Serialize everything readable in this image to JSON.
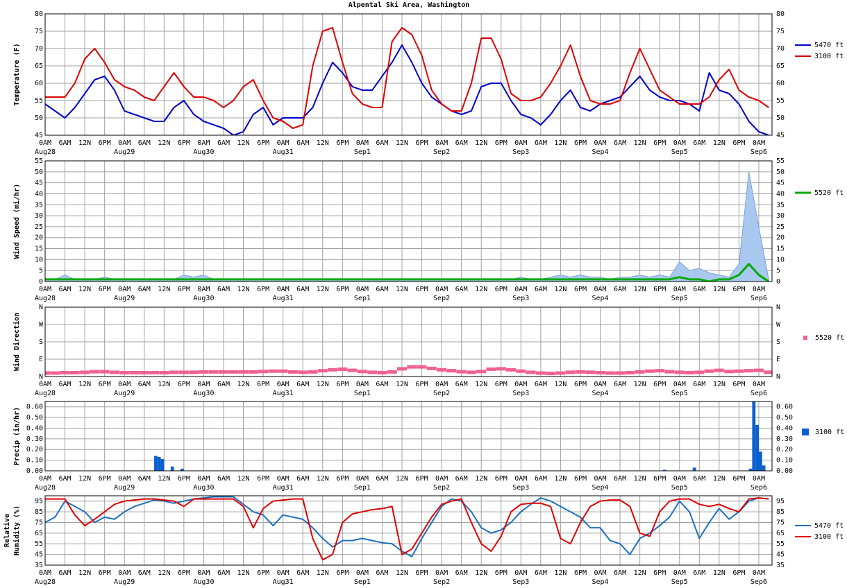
{
  "chart_data": {
    "title": "Alpental Ski Area, Washington",
    "xlim": [
      0,
      220
    ],
    "xticks": [
      {
        "value": 0,
        "label": "0AM"
      },
      {
        "value": 6,
        "label": "6AM"
      },
      {
        "value": 12,
        "label": "12N"
      },
      {
        "value": 18,
        "label": "6PM"
      },
      {
        "value": 24,
        "label": "0AM"
      },
      {
        "value": 30,
        "label": "6AM"
      },
      {
        "value": 36,
        "label": "12N"
      },
      {
        "value": 42,
        "label": "6PM"
      },
      {
        "value": 48,
        "label": "0AM"
      },
      {
        "value": 54,
        "label": "6AM"
      },
      {
        "value": 60,
        "label": "12N"
      },
      {
        "value": 66,
        "label": "6PM"
      },
      {
        "value": 72,
        "label": "0AM"
      },
      {
        "value": 78,
        "label": "6AM"
      },
      {
        "value": 84,
        "label": "12N"
      },
      {
        "value": 90,
        "label": "6PM"
      },
      {
        "value": 96,
        "label": "0AM"
      },
      {
        "value": 102,
        "label": "6AM"
      },
      {
        "value": 108,
        "label": "12N"
      },
      {
        "value": 114,
        "label": "6PM"
      },
      {
        "value": 120,
        "label": "0AM"
      },
      {
        "value": 126,
        "label": "6AM"
      },
      {
        "value": 132,
        "label": "12N"
      },
      {
        "value": 138,
        "label": "6PM"
      },
      {
        "value": 144,
        "label": "0AM"
      },
      {
        "value": 150,
        "label": "6AM"
      },
      {
        "value": 156,
        "label": "12N"
      },
      {
        "value": 162,
        "label": "6PM"
      },
      {
        "value": 168,
        "label": "0AM"
      },
      {
        "value": 174,
        "label": "6AM"
      },
      {
        "value": 180,
        "label": "12N"
      },
      {
        "value": 186,
        "label": "6PM"
      },
      {
        "value": 192,
        "label": "0AM"
      },
      {
        "value": 198,
        "label": "6AM"
      },
      {
        "value": 204,
        "label": "12N"
      },
      {
        "value": 210,
        "label": "6PM"
      },
      {
        "value": 216,
        "label": "0AM"
      }
    ],
    "xdates": [
      {
        "value": 0,
        "label": "Aug28"
      },
      {
        "value": 24,
        "label": "Aug29"
      },
      {
        "value": 48,
        "label": "Aug30"
      },
      {
        "value": 72,
        "label": "Aug31"
      },
      {
        "value": 96,
        "label": "Sep1"
      },
      {
        "value": 120,
        "label": "Sep2"
      },
      {
        "value": 144,
        "label": "Sep3"
      },
      {
        "value": 168,
        "label": "Sep4"
      },
      {
        "value": 192,
        "label": "Sep5"
      },
      {
        "value": 216,
        "label": "Sep6"
      }
    ],
    "x": [
      0,
      3,
      6,
      9,
      12,
      15,
      18,
      21,
      24,
      27,
      30,
      33,
      36,
      39,
      42,
      45,
      48,
      51,
      54,
      57,
      60,
      63,
      66,
      69,
      72,
      75,
      78,
      81,
      84,
      87,
      90,
      93,
      96,
      99,
      102,
      105,
      108,
      111,
      114,
      117,
      120,
      123,
      126,
      129,
      132,
      135,
      138,
      141,
      144,
      147,
      150,
      153,
      156,
      159,
      162,
      165,
      168,
      171,
      174,
      177,
      180,
      183,
      186,
      189,
      192,
      195,
      198,
      201,
      204,
      207,
      210,
      213,
      216,
      219
    ],
    "panels": [
      {
        "type": "line",
        "ylabel": [
          "Temperature (F)"
        ],
        "ylim": [
          45,
          80
        ],
        "yticks": [
          45,
          50,
          55,
          60,
          65,
          70,
          75,
          80
        ],
        "grid": true,
        "series": [
          {
            "name": "5470 ft",
            "color": "#0000cc",
            "values": [
              54,
              52,
              50,
              53,
              57,
              61,
              62,
              58,
              52,
              51,
              50,
              49,
              49,
              53,
              55,
              51,
              49,
              48,
              47,
              45,
              46,
              51,
              53,
              48,
              50,
              50,
              50,
              53,
              60,
              66,
              63,
              59,
              58,
              58,
              62,
              66,
              71,
              66,
              60,
              56,
              54,
              52,
              51,
              52,
              59,
              60,
              60,
              55,
              51,
              50,
              48,
              51,
              55,
              58,
              53,
              52,
              54,
              55,
              56,
              59,
              62,
              58,
              56,
              55,
              55,
              54,
              52,
              63,
              58,
              57,
              54,
              49,
              46,
              45
            ]
          },
          {
            "name": "3100 ft",
            "color": "#dd0000",
            "values": [
              56,
              56,
              56,
              60,
              67,
              70,
              66,
              61,
              59,
              58,
              56,
              55,
              59,
              63,
              59,
              56,
              56,
              55,
              53,
              55,
              59,
              61,
              55,
              50,
              49,
              47,
              48,
              65,
              75,
              76,
              66,
              57,
              54,
              53,
              53,
              72,
              76,
              74,
              68,
              58,
              54,
              52,
              52,
              60,
              73,
              73,
              67,
              57,
              55,
              55,
              56,
              60,
              65,
              71,
              62,
              55,
              54,
              54,
              55,
              63,
              70,
              64,
              58,
              56,
              54,
              54,
              54,
              56,
              61,
              64,
              58,
              56,
              55,
              53
            ]
          }
        ]
      },
      {
        "type": "area",
        "ylabel": [
          "Wind Speed (mi/hr)"
        ],
        "ylim": [
          0,
          55
        ],
        "yticks": [
          0,
          5,
          10,
          15,
          20,
          25,
          30,
          35,
          40,
          45,
          50,
          55
        ],
        "grid": true,
        "series": [
          {
            "color": "#a8c8f0",
            "values": [
              1,
              1,
              3,
              1,
              1,
              1,
              2,
              1,
              1,
              1,
              1,
              1,
              1,
              1,
              3,
              2,
              3,
              1,
              1,
              1,
              1,
              1,
              1,
              1,
              1,
              1,
              1,
              1,
              1,
              1,
              1,
              1,
              1,
              1,
              1,
              1,
              1,
              1,
              1,
              1,
              1,
              1,
              1,
              1,
              1,
              1,
              1,
              1,
              2,
              1,
              1,
              2,
              3,
              2,
              3,
              2,
              2,
              1,
              2,
              2,
              3,
              2,
              3,
              2,
              9,
              5,
              6,
              4,
              3,
              2,
              8,
              50,
              25,
              1
            ]
          },
          {
            "name": "5520 ft",
            "color": "#00aa00",
            "values": [
              1,
              1,
              1,
              1,
              1,
              1,
              1,
              1,
              1,
              1,
              1,
              1,
              1,
              1,
              1,
              1,
              1,
              1,
              1,
              1,
              1,
              1,
              1,
              1,
              1,
              1,
              1,
              1,
              1,
              1,
              1,
              1,
              1,
              1,
              1,
              1,
              1,
              1,
              1,
              1,
              1,
              1,
              1,
              1,
              1,
              1,
              1,
              1,
              1,
              1,
              1,
              1,
              1,
              1,
              1,
              1,
              1,
              1,
              1,
              1,
              1,
              1,
              1,
              1,
              2,
              1,
              1,
              0,
              1,
              1,
              3,
              8,
              3,
              0
            ]
          }
        ]
      },
      {
        "type": "scatter",
        "ylabel": [
          "Wind Direction"
        ],
        "ylim": [
          0,
          360
        ],
        "yticks": [
          {
            "value": 0,
            "label": "N"
          },
          {
            "value": 90,
            "label": "E"
          },
          {
            "value": 180,
            "label": "S"
          },
          {
            "value": 270,
            "label": "W"
          },
          {
            "value": 360,
            "label": "N"
          }
        ],
        "grid": true,
        "series": [
          {
            "name": "5520 ft",
            "color": "#f06090",
            "values": [
              18,
              18,
              20,
              20,
              22,
              25,
              25,
              22,
              20,
              20,
              20,
              20,
              20,
              22,
              22,
              22,
              24,
              24,
              24,
              24,
              24,
              24,
              26,
              28,
              28,
              24,
              22,
              24,
              30,
              35,
              38,
              32,
              26,
              22,
              20,
              24,
              40,
              50,
              50,
              42,
              35,
              30,
              25,
              22,
              26,
              38,
              40,
              35,
              28,
              22,
              18,
              16,
              18,
              22,
              24,
              22,
              20,
              18,
              18,
              20,
              24,
              28,
              30,
              25,
              22,
              20,
              22,
              28,
              32,
              26,
              28,
              30,
              32,
              22
            ]
          }
        ]
      },
      {
        "type": "bar",
        "ylabel": [
          "Precip (in/hr)"
        ],
        "ylim": [
          0,
          0.65
        ],
        "yticks": [
          {
            "value": 0,
            "label": "0.00"
          },
          {
            "value": 0.1,
            "label": "0.10"
          },
          {
            "value": 0.2,
            "label": "0.20"
          },
          {
            "value": 0.3,
            "label": "0.30"
          },
          {
            "value": 0.4,
            "label": "0.40"
          },
          {
            "value": 0.5,
            "label": "0.50"
          },
          {
            "value": 0.6,
            "label": "0.60"
          }
        ],
        "grid": true,
        "x": [
          33,
          34,
          35,
          38,
          41,
          187,
          196,
          213,
          214,
          215,
          216,
          217
        ],
        "series": [
          {
            "name": "3100 ft",
            "color": "#0a5fd0",
            "values": [
              0.14,
              0.13,
              0.11,
              0.04,
              0.02,
              0.01,
              0.03,
              0.02,
              0.65,
              0.43,
              0.18,
              0.05
            ]
          }
        ]
      },
      {
        "type": "line",
        "ylabel": [
          "Relative",
          "Humidity (%)"
        ],
        "ylim": [
          35,
          100
        ],
        "yticks": [
          35,
          45,
          55,
          65,
          75,
          85,
          95
        ],
        "grid": true,
        "series": [
          {
            "name": "5470 ft",
            "color": "#1e6fc0",
            "values": [
              75,
              80,
              95,
              90,
              85,
              75,
              80,
              78,
              85,
              90,
              93,
              96,
              95,
              93,
              95,
              97,
              98,
              99,
              99,
              99,
              92,
              85,
              82,
              72,
              82,
              80,
              78,
              70,
              60,
              52,
              58,
              58,
              60,
              58,
              56,
              55,
              48,
              43,
              60,
              75,
              90,
              97,
              95,
              85,
              70,
              65,
              68,
              75,
              85,
              92,
              98,
              95,
              90,
              85,
              80,
              70,
              70,
              58,
              55,
              45,
              60,
              65,
              72,
              80,
              95,
              85,
              60,
              75,
              88,
              78,
              85,
              95,
              98,
              97
            ]
          },
          {
            "name": "3100 ft",
            "color": "#e00000",
            "values": [
              97,
              97,
              97,
              82,
              72,
              78,
              85,
              92,
              95,
              96,
              97,
              97,
              96,
              95,
              90,
              97,
              97,
              97,
              97,
              97,
              90,
              70,
              88,
              95,
              96,
              97,
              97,
              60,
              40,
              45,
              75,
              83,
              85,
              87,
              88,
              90,
              45,
              50,
              65,
              80,
              92,
              95,
              97,
              75,
              55,
              48,
              62,
              85,
              92,
              93,
              93,
              90,
              60,
              55,
              75,
              90,
              95,
              96,
              96,
              90,
              65,
              62,
              85,
              95,
              97,
              97,
              92,
              90,
              92,
              88,
              85,
              97,
              98,
              97
            ]
          }
        ]
      }
    ]
  }
}
